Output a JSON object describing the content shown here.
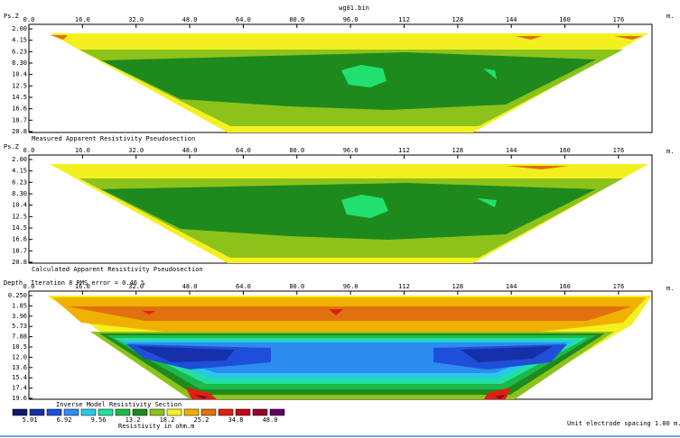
{
  "file_title": "wg01.bin",
  "x_ticks": [
    "0.0",
    "16.0",
    "32.0",
    "48.0",
    "64.0",
    "80.0",
    "96.0",
    "112",
    "128",
    "144",
    "160",
    "176"
  ],
  "x_unit": "m.",
  "colors": {
    "scale": [
      "#0a1a6e",
      "#1530a8",
      "#1f4fd8",
      "#2d8cf0",
      "#27c8e8",
      "#22e0a0",
      "#1db84a",
      "#1e8a1e",
      "#8cc21a",
      "#f4f020",
      "#f0b000",
      "#e07010",
      "#e02010",
      "#c00018",
      "#900030",
      "#600060"
    ],
    "bg": "#ffffff"
  },
  "scale_labels": [
    "5.01",
    "6.92",
    "9.56",
    "13.2",
    "18.2",
    "25.2",
    "34.8",
    "48.0"
  ],
  "legend_title": "Inverse Model Resistivity Section",
  "legend_unit": "Resistivity in ohm.m",
  "footer": "Unit electrode spacing 1.00 m.",
  "chart_data": [
    {
      "type": "heatmap",
      "title": "Measured Apparent Resistivity Pseudosection",
      "ylabel": "Ps.Z",
      "y_ticks": [
        "2.00",
        "4.15",
        "6.23",
        "8.30",
        "10.4",
        "12.5",
        "14.5",
        "16.6",
        "18.7",
        "20.8"
      ],
      "xlim": [
        0,
        186
      ],
      "ylim": [
        2.0,
        20.8
      ],
      "layers": [
        {
          "color_index": 9,
          "range_ohm_m": [
            25.2,
            34.8
          ]
        },
        {
          "color_index": 8,
          "range_ohm_m": [
            18.2,
            25.2
          ]
        },
        {
          "color_index": 7,
          "range_ohm_m": [
            13.2,
            18.2
          ]
        },
        {
          "color_index": 6,
          "range_ohm_m": [
            9.56,
            13.2
          ]
        }
      ]
    },
    {
      "type": "heatmap",
      "title": "Calculated Apparent Resistivity Pseudosection",
      "ylabel": "Ps.Z",
      "y_ticks": [
        "2.00",
        "4.15",
        "6.23",
        "8.30",
        "10.4",
        "12.5",
        "14.5",
        "16.6",
        "18.7",
        "20.8"
      ],
      "xlim": [
        0,
        186
      ],
      "ylim": [
        2.0,
        20.8
      ],
      "layers": [
        {
          "color_index": 9,
          "range_ohm_m": [
            25.2,
            34.8
          ]
        },
        {
          "color_index": 8,
          "range_ohm_m": [
            18.2,
            25.2
          ]
        },
        {
          "color_index": 7,
          "range_ohm_m": [
            13.2,
            18.2
          ]
        },
        {
          "color_index": 6,
          "range_ohm_m": [
            9.56,
            13.2
          ]
        }
      ]
    },
    {
      "type": "heatmap",
      "title": "Inverse Model Resistivity Section",
      "ylabel": "Depth",
      "subtitle": "Iteration 8 RMS error = 0.46 %",
      "y_ticks": [
        "0.250",
        "1.85",
        "3.96",
        "5.73",
        "7.88",
        "10.5",
        "12.0",
        "13.6",
        "15.4",
        "17.4",
        "19.6"
      ],
      "xlim": [
        0,
        186
      ],
      "ylim": [
        0.25,
        19.6
      ]
    }
  ]
}
